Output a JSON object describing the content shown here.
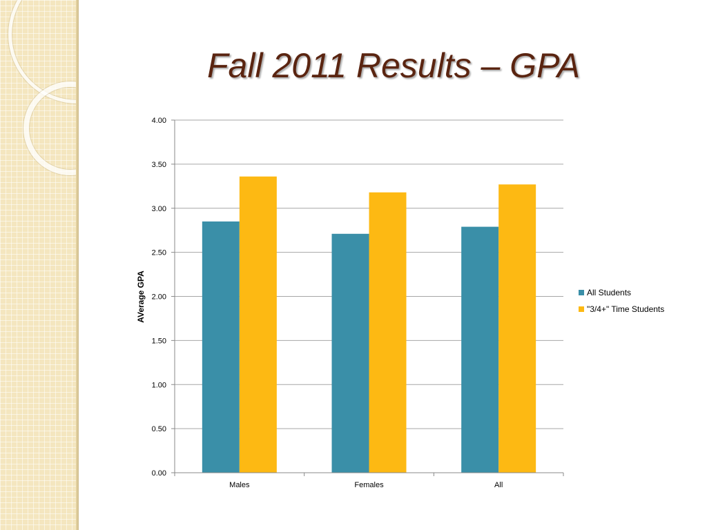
{
  "slide": {
    "title": "Fall 2011 Results – GPA"
  },
  "colors": {
    "series_all": "#3a8fa8",
    "series_34": "#fdb913",
    "title": "#5a2410",
    "gridline": "#a6a6a6"
  },
  "chart_data": {
    "type": "bar",
    "categories": [
      "Males",
      "Females",
      "All"
    ],
    "series": [
      {
        "name": "All Students",
        "values": [
          2.85,
          2.71,
          2.79
        ]
      },
      {
        "name": "\"3/4+\" Time Students",
        "values": [
          3.36,
          3.18,
          3.27
        ]
      }
    ],
    "ylabel": "AVerage GPA",
    "xlabel": "",
    "ylim": [
      0,
      4
    ],
    "yticks": [
      "0.00",
      "0.50",
      "1.00",
      "1.50",
      "2.00",
      "2.50",
      "3.00",
      "3.50",
      "4.00"
    ],
    "grid": true,
    "legend_position": "right"
  }
}
